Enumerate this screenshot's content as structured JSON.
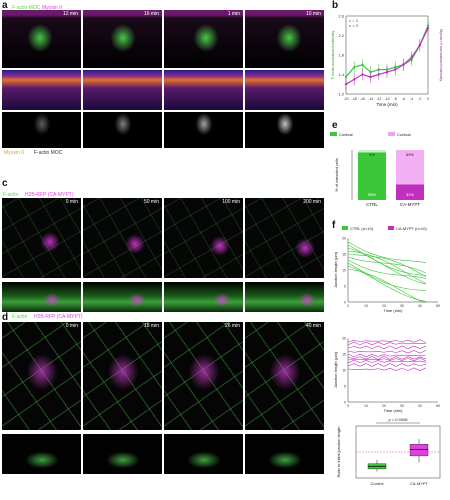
{
  "figure": {
    "panel_labels": [
      "a",
      "b",
      "c",
      "d",
      "e",
      "f"
    ],
    "a": {
      "top_label_1": "F-actin MOC",
      "top_label_2": "Myosin II",
      "axis_label": "X",
      "axis_label_2": "Z",
      "timepoints": [
        "12 min",
        "16 min",
        "1 min",
        "10 min"
      ],
      "scale_bar": "5 µm",
      "bottom_label": "Myosin II",
      "bottom_label_2": "F-actin MOC"
    },
    "b": {
      "n_label_1": "n = 3",
      "n_label_2": "n = 3",
      "y_left_label": "F-actin normalized intensity",
      "y_right_label": "Myosin II normalized intensity",
      "x_label": "Time (min)",
      "y_ticks": [
        "1.0",
        "1.4",
        "1.8",
        "2.2",
        "2.6"
      ]
    },
    "c": {
      "label_1": "F-actin",
      "label_2": "H2B-RFP (CA-MYPT)",
      "axis_x": "X",
      "axis_y": "Y",
      "timepoints": [
        "0 min",
        "50 min",
        "100 min",
        "200 min"
      ],
      "scale_top": "10 µm",
      "scale_bottom": "5 µm"
    },
    "d": {
      "legend_1": "Cortical",
      "legend_2": "Cortical",
      "y_label": "% of extruded cells",
      "x_labels": [
        "CTRL",
        "CA-MYPT"
      ],
      "pct_top_ctrl": "5%",
      "pct_top_ca": "69%",
      "pct_bottom_ctrl": "95%",
      "pct_bottom_ca": "31%"
    },
    "e": {
      "label_1": "F-actin",
      "label_2": "H2B-RFP (CA-MYPT)",
      "timepoints": [
        "0 min",
        "18 min",
        "26 min",
        "40 min"
      ],
      "scale_top": "10 µm",
      "scale_bottom": "5 µm"
    },
    "f": {
      "legend_ctrl": "CTRL (n=10)",
      "legend_ca": "CA-MYPT (n=10)",
      "y_label": "Junction length (µm)",
      "x_label": "Time (min)",
      "x_ticks_ctrl": [
        "0",
        "10",
        "20",
        "30",
        "40",
        "50"
      ],
      "x_ticks_ca": [
        "0",
        "10",
        "20",
        "30",
        "40",
        "50"
      ],
      "y_ticks": [
        "0",
        "5",
        "10",
        "15",
        "20"
      ],
      "box_p": "p = 0.0008",
      "box_y_label": "Ratio to initial junction length",
      "box_x_labels": [
        "Control",
        "CA-MYPT"
      ]
    }
  },
  "chart_data": [
    {
      "type": "line",
      "panel": "b",
      "x": [
        -20,
        -18,
        -16,
        -14,
        -12,
        -10,
        -8,
        -6,
        -4,
        -2,
        0
      ],
      "xlabel": "Time (min)",
      "ylim": [
        1.0,
        2.6
      ],
      "series": [
        {
          "values": [
            1.35,
            1.55,
            1.6,
            1.45,
            1.5,
            1.5,
            1.55,
            1.6,
            1.7,
            2.0,
            2.4
          ]
        },
        {
          "values": [
            1.2,
            1.3,
            1.4,
            1.35,
            1.4,
            1.45,
            1.5,
            1.6,
            1.75,
            2.0,
            2.35
          ]
        }
      ]
    },
    {
      "type": "bar",
      "panel": "d",
      "categories": [
        "CTRL",
        "CA-MYPT"
      ],
      "series": [
        {
          "values": [
            95,
            31
          ]
        },
        {
          "values": [
            5,
            69
          ]
        }
      ],
      "ylim": [
        0,
        100
      ]
    },
    {
      "type": "line",
      "panel": "f-ctrl",
      "xlabel": "Time (min)",
      "ylabel": "Junction length (µm)",
      "ylim": [
        0,
        20
      ],
      "xlim": [
        0,
        50
      ]
    },
    {
      "type": "line",
      "panel": "f-ca",
      "xlabel": "Time (min)",
      "ylim": [
        0,
        20
      ],
      "xlim": [
        0,
        50
      ]
    },
    {
      "type": "box",
      "panel": "f-box",
      "categories": [
        "Control",
        "CA-MYPT"
      ],
      "median": [
        0.45,
        1.1
      ],
      "q1": [
        0.35,
        0.85
      ],
      "q3": [
        0.55,
        1.3
      ],
      "whisker_low": [
        0.25,
        0.6
      ],
      "whisker_high": [
        0.7,
        1.5
      ],
      "ylim": [
        0,
        2
      ]
    }
  ]
}
